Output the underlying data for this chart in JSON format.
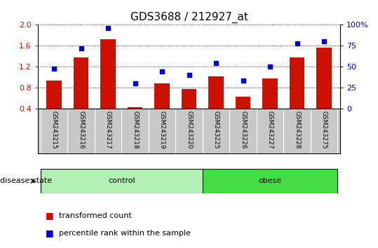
{
  "title": "GDS3688 / 212927_at",
  "samples": [
    "GSM243215",
    "GSM243216",
    "GSM243217",
    "GSM243218",
    "GSM243219",
    "GSM243220",
    "GSM243225",
    "GSM243226",
    "GSM243227",
    "GSM243228",
    "GSM243275"
  ],
  "transformed_count": [
    0.93,
    1.38,
    1.73,
    0.43,
    0.88,
    0.77,
    1.02,
    0.62,
    0.97,
    1.38,
    1.57
  ],
  "percentile_rank": [
    48,
    72,
    96,
    30,
    44,
    40,
    54,
    33,
    50,
    78,
    80
  ],
  "groups": [
    {
      "label": "control",
      "start": 0,
      "end": 5,
      "color": "#b3f0b3"
    },
    {
      "label": "obese",
      "start": 6,
      "end": 10,
      "color": "#44dd44"
    }
  ],
  "ylim_left": [
    0.4,
    2.0
  ],
  "ylim_right": [
    0,
    100
  ],
  "yticks_left": [
    0.4,
    0.8,
    1.2,
    1.6,
    2.0
  ],
  "yticks_right": [
    0,
    25,
    50,
    75,
    100
  ],
  "ytick_labels_right": [
    "0",
    "25",
    "50",
    "75",
    "100%"
  ],
  "bar_color": "#cc1100",
  "dot_color": "#0000cc",
  "bar_width": 0.55,
  "title_fontsize": 11,
  "legend_items": [
    {
      "label": "transformed count",
      "color": "#cc1100"
    },
    {
      "label": "percentile rank within the sample",
      "color": "#0000cc"
    }
  ],
  "disease_state_label": "disease state",
  "left_axis_color": "#cc1100",
  "right_axis_color": "#0000cc",
  "tick_area_color": "#c8c8c8"
}
